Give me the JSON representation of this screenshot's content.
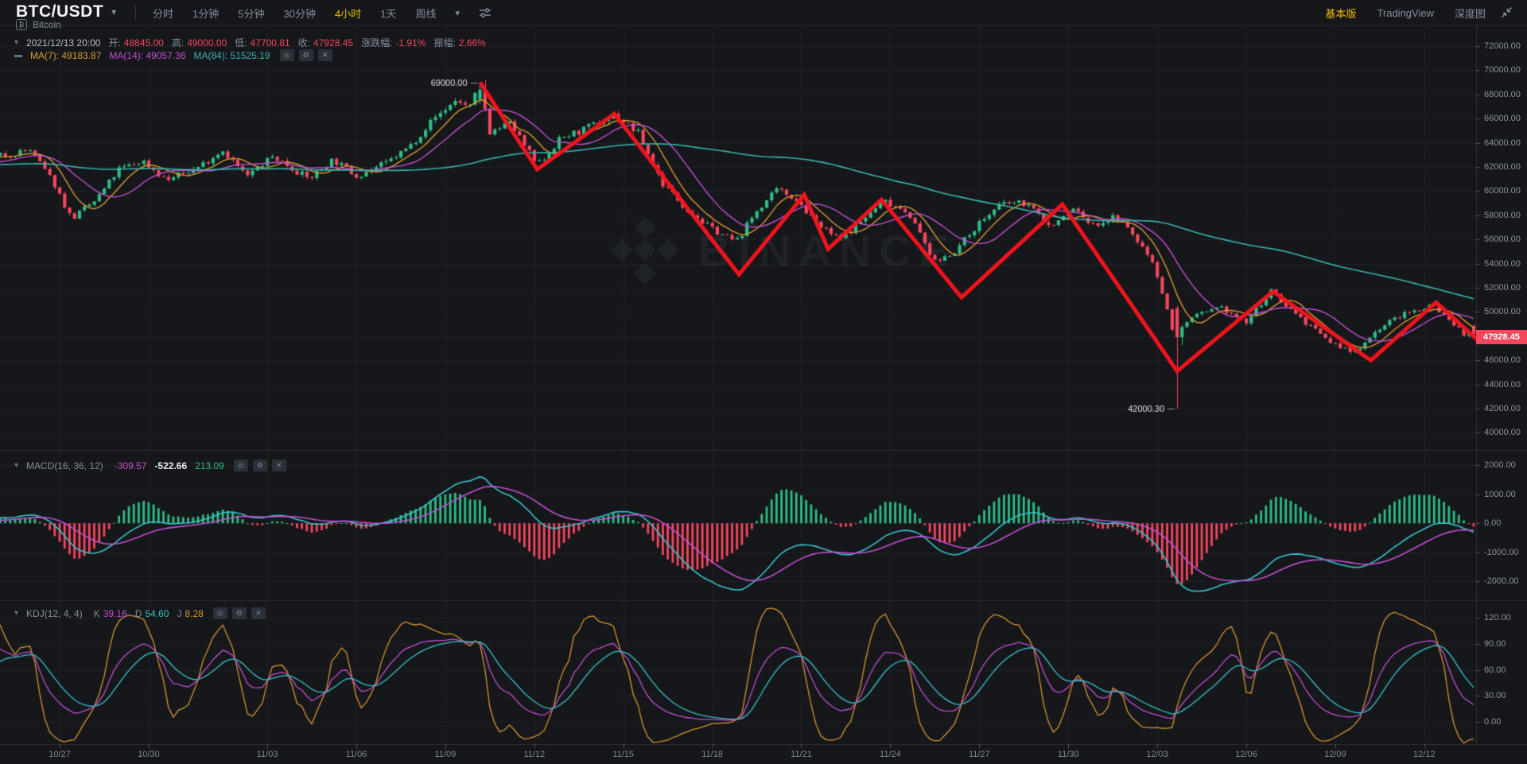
{
  "header": {
    "symbol": "BTC/USDT",
    "coin_name": "Bitcoin",
    "intervals": [
      {
        "label": "分时",
        "active": false
      },
      {
        "label": "1分钟",
        "active": false
      },
      {
        "label": "5分钟",
        "active": false
      },
      {
        "label": "30分钟",
        "active": false
      },
      {
        "label": "4小时",
        "active": true
      },
      {
        "label": "1天",
        "active": false
      },
      {
        "label": "周线",
        "active": false
      }
    ],
    "view_tabs": [
      {
        "label": "基本版",
        "active": true
      },
      {
        "label": "TradingView",
        "active": false
      },
      {
        "label": "深度图",
        "active": false
      }
    ]
  },
  "ohlc_row": {
    "datetime": "2021/12/13 20:00",
    "open_label": "开:",
    "open_value": "48845.00",
    "high_label": "高:",
    "high_value": "49000.00",
    "low_label": "低:",
    "low_value": "47700.81",
    "close_label": "收:",
    "close_value": "47928.45",
    "change_label": "涨跌幅:",
    "change_value": "-1.91%",
    "amplitude_label": "振幅:",
    "amplitude_value": "2.66%"
  },
  "ma_row": {
    "ma7_label": "MA(7):",
    "ma7_value": "49183.87",
    "ma14_label": "MA(14):",
    "ma14_value": "49057.36",
    "ma84_label": "MA(84):",
    "ma84_value": "51525.19"
  },
  "macd_row": {
    "label": "MACD(16, 36, 12)",
    "dif_value": "-309.57",
    "dea_value": "-522.66",
    "hist_value": "213.09"
  },
  "kdj_row": {
    "label": "KDJ(12, 4, 4)",
    "k_label": "K",
    "k_value": "39.16",
    "d_label": "D",
    "d_value": "54.60",
    "j_label": "J",
    "j_value": "8.28"
  },
  "price_badge": "47928.45",
  "watermark_text": "BINANCE",
  "icons": {
    "symbol_caret": "▾",
    "row_caret": "▾",
    "ma_dash": "▬",
    "eye": "◎",
    "gear": "⚙",
    "close": "✕",
    "bitcoin": "₿"
  },
  "colors": {
    "up": "#2ebd85",
    "down": "#f6465d",
    "accent": "#f0b90b",
    "ma7": "#d89a2f",
    "ma14": "#c44fd0",
    "ma84": "#3ab3ae",
    "macd_dif": "#38c4c8",
    "macd_dea": "#c44fd0",
    "kdj_k": "#c44fd0",
    "kdj_d": "#38c4c8",
    "kdj_j": "#d9952e",
    "trend_line": "#f0141e",
    "badge_bg": "#f6465d",
    "grid": "rgba(255,255,255,0.045)",
    "axis_tick": "#4a5160",
    "annotation_text": "#dde0e3"
  },
  "chart_data": {
    "type": "candlestick",
    "symbol": "BTC/USDT",
    "interval": "4h",
    "candles_per_day": 6,
    "day0_date": "10/25",
    "x_axis": {
      "ticks": [
        {
          "label": "10/27",
          "day": 2
        },
        {
          "label": "10/30",
          "day": 5
        },
        {
          "label": "11/03",
          "day": 9
        },
        {
          "label": "11/06",
          "day": 12
        },
        {
          "label": "11/09",
          "day": 15
        },
        {
          "label": "11/12",
          "day": 18
        },
        {
          "label": "11/15",
          "day": 21
        },
        {
          "label": "11/18",
          "day": 24
        },
        {
          "label": "11/21",
          "day": 27
        },
        {
          "label": "11/24",
          "day": 30
        },
        {
          "label": "11/27",
          "day": 33
        },
        {
          "label": "11/30",
          "day": 36
        },
        {
          "label": "12/03",
          "day": 39
        },
        {
          "label": "12/06",
          "day": 42
        },
        {
          "label": "12/09",
          "day": 45
        },
        {
          "label": "12/12",
          "day": 48
        }
      ]
    },
    "main_pane": {
      "y_ticks": [
        72000,
        70000,
        68000,
        66000,
        64000,
        62000,
        60000,
        58000,
        56000,
        54000,
        52000,
        50000,
        48000,
        46000,
        44000,
        42000,
        40000
      ],
      "ma_periods": [
        7,
        14,
        84
      ],
      "price_anchors": [
        [
          -14,
          61800
        ],
        [
          -12,
          63000
        ],
        [
          -10,
          61000
        ],
        [
          -8,
          62600
        ],
        [
          -6,
          61500
        ],
        [
          -4,
          62800
        ],
        [
          -2,
          61800
        ],
        [
          -1,
          62400
        ],
        [
          0,
          62900
        ],
        [
          1,
          63400
        ],
        [
          1.8,
          60700
        ],
        [
          2.4,
          57700
        ],
        [
          3.2,
          59200
        ],
        [
          4,
          61800
        ],
        [
          4.8,
          62500
        ],
        [
          5.6,
          60900
        ],
        [
          6.6,
          61900
        ],
        [
          7.5,
          63400
        ],
        [
          8.3,
          61200
        ],
        [
          9.2,
          62900
        ],
        [
          10.4,
          61000
        ],
        [
          11.2,
          62600
        ],
        [
          12,
          61300
        ],
        [
          13,
          62300
        ],
        [
          13.8,
          63700
        ],
        [
          14.6,
          66000
        ],
        [
          15.4,
          67600
        ],
        [
          15.8,
          66800
        ],
        [
          16.17,
          68800
        ],
        [
          16.5,
          64900
        ],
        [
          17.2,
          65600
        ],
        [
          18.1,
          62100
        ],
        [
          18.9,
          64400
        ],
        [
          19.6,
          65000
        ],
        [
          20.7,
          66300
        ],
        [
          21.5,
          64800
        ],
        [
          22.3,
          60700
        ],
        [
          23.1,
          58600
        ],
        [
          23.9,
          57000
        ],
        [
          24.8,
          55800
        ],
        [
          25.5,
          58400
        ],
        [
          26.2,
          60100
        ],
        [
          26.8,
          59400
        ],
        [
          27.6,
          57100
        ],
        [
          28.3,
          56000
        ],
        [
          29.1,
          57700
        ],
        [
          29.8,
          59200
        ],
        [
          30.6,
          58300
        ],
        [
          31.5,
          54100
        ],
        [
          32.2,
          55100
        ],
        [
          33,
          57400
        ],
        [
          33.8,
          59000
        ],
        [
          34.6,
          59000
        ],
        [
          35.4,
          57000
        ],
        [
          36.2,
          58600
        ],
        [
          36.8,
          57100
        ],
        [
          37.6,
          57900
        ],
        [
          38.2,
          56300
        ],
        [
          38.9,
          54000
        ],
        [
          39.4,
          49500
        ],
        [
          39.67,
          47300
        ],
        [
          39.9,
          49200
        ],
        [
          40.5,
          49800
        ],
        [
          41.2,
          50300
        ],
        [
          42,
          49100
        ],
        [
          42.8,
          51700
        ],
        [
          43.4,
          50500
        ],
        [
          44.2,
          48700
        ],
        [
          44.9,
          47400
        ],
        [
          45.6,
          46600
        ],
        [
          46.4,
          48500
        ],
        [
          47.1,
          49600
        ],
        [
          48.3,
          50600
        ],
        [
          48.9,
          49200
        ],
        [
          49.4,
          48100
        ],
        [
          49.84,
          47928
        ]
      ],
      "peak_candle": {
        "day": 16.17,
        "open": 67600,
        "close": 68400,
        "high": 69000.0,
        "low": 67200
      },
      "crash_candle": {
        "day": 39.67,
        "open": 50300,
        "close": 47900,
        "high": 50500,
        "low": 42000.3
      },
      "last_candle": {
        "open": 48845.0,
        "high": 49000.0,
        "low": 47700.81,
        "close": 47928.45
      },
      "annotations": [
        {
          "day": 16.17,
          "price": 69000.0,
          "label": "69000.00"
        },
        {
          "day": 39.67,
          "price": 42000.3,
          "label": "42000.30"
        }
      ],
      "trend_line": [
        [
          16.17,
          69000
        ],
        [
          18.1,
          61800
        ],
        [
          20.7,
          66400
        ],
        [
          24.9,
          53100
        ],
        [
          27.1,
          59700
        ],
        [
          27.9,
          55200
        ],
        [
          29.7,
          59300
        ],
        [
          32.4,
          51200
        ],
        [
          35.8,
          58900
        ],
        [
          39.67,
          45100
        ],
        [
          42.9,
          51700
        ],
        [
          46.2,
          46000
        ],
        [
          48.4,
          50800
        ],
        [
          49.84,
          47600
        ]
      ]
    },
    "macd_pane": {
      "params": [
        16,
        36,
        12
      ],
      "y_ticks": [
        2000,
        1000,
        0,
        -1000,
        -2000
      ]
    },
    "kdj_pane": {
      "params": [
        12,
        4,
        4
      ],
      "y_ticks": [
        120,
        90,
        60,
        30,
        0
      ]
    }
  }
}
